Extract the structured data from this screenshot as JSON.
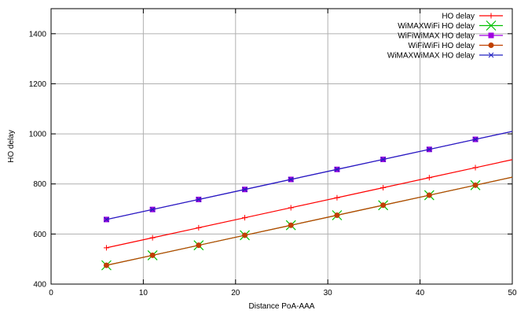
{
  "chart_data": {
    "type": "line",
    "title": "",
    "xlabel": "Distance PoA-AAA",
    "ylabel": "HO delay",
    "xlim": [
      0,
      50
    ],
    "ylim": [
      400,
      1500
    ],
    "xticks": [
      0,
      10,
      20,
      30,
      40,
      50
    ],
    "xtick_labels": [
      "0",
      "10",
      "20",
      "30",
      "40",
      "50"
    ],
    "yticks": [
      400,
      600,
      800,
      1000,
      1200,
      1400
    ],
    "ytick_labels": [
      "400",
      "600",
      "800",
      "1000",
      "1200",
      "1400"
    ],
    "grid": true,
    "legend_position": "top-right",
    "series": [
      {
        "name": "HO delay",
        "color": "#ff0000",
        "marker": "plus",
        "x": [
          6,
          11,
          16,
          21,
          26,
          31,
          36,
          41,
          46
        ],
        "y": [
          545,
          585,
          625,
          665,
          705,
          745,
          785,
          825,
          865
        ],
        "line_end": [
          50,
          897
        ]
      },
      {
        "name": "WiMAXWiFi HO delay",
        "color": "#00c000",
        "marker": "x-large",
        "x": [
          6,
          11,
          16,
          21,
          26,
          31,
          36,
          41,
          46
        ],
        "y": [
          475,
          515,
          555,
          595,
          635,
          675,
          715,
          755,
          795
        ],
        "line_end": [
          50,
          827
        ]
      },
      {
        "name": "WiFiWiMAX HO delay",
        "color": "#a000e0",
        "marker": "square",
        "x": [
          6,
          11,
          16,
          21,
          26,
          31,
          36,
          41,
          46
        ],
        "y": [
          658,
          698,
          738,
          778,
          818,
          858,
          898,
          938,
          978
        ],
        "line_end": [
          50,
          1010
        ]
      },
      {
        "name": "WiFiWiFi HO delay",
        "color": "#c04000",
        "marker": "circle",
        "x": [
          6,
          11,
          16,
          21,
          26,
          31,
          36,
          41,
          46
        ],
        "y": [
          475,
          515,
          555,
          595,
          635,
          675,
          715,
          755,
          795
        ],
        "line_end": [
          50,
          827
        ]
      },
      {
        "name": "WiMAXWiMAX HO delay",
        "color": "#2020c0",
        "marker": "x-small",
        "x": [
          6,
          11,
          16,
          21,
          26,
          31,
          36,
          41,
          46
        ],
        "y": [
          658,
          698,
          738,
          778,
          818,
          858,
          898,
          938,
          978
        ],
        "line_end": [
          50,
          1010
        ]
      }
    ]
  }
}
